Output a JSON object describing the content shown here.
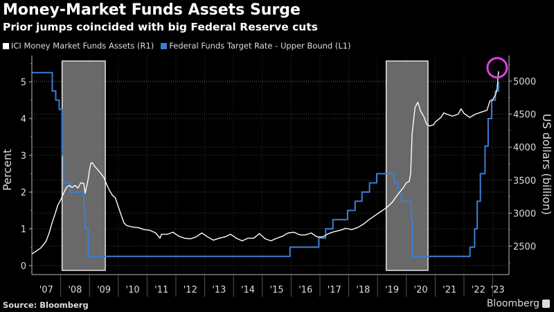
{
  "header": {
    "title": "Money-Market Funds Assets Surge",
    "subtitle": "Prior jumps coincided with big Federal Reserve cuts"
  },
  "footer": {
    "source": "Source: Bloomberg",
    "brand": "Bloomberg"
  },
  "chart_data": {
    "type": "line",
    "title": "Money-Market Funds Assets Surge",
    "subtitle": "Prior jumps coincided with big Federal Reserve cuts",
    "legend": [
      {
        "name": "ICI Money Market Funds Assets  (R1)",
        "color": "#ffffff"
      },
      {
        "name": "Federal Funds Target Rate - Upper Bound  (L1)",
        "color": "#3a7fd6"
      }
    ],
    "legend_position": "top-left",
    "xlabel": "",
    "x_ticks": [
      "'07",
      "'08",
      "'09",
      "'10",
      "'11",
      "'12",
      "'13",
      "'14",
      "'15",
      "'16",
      "'17",
      "'18",
      "'19",
      "'20",
      "'21",
      "'22",
      "'23"
    ],
    "x_range": [
      2007.0,
      2023.3
    ],
    "left_axis": {
      "label": "Percent",
      "ticks": [
        0,
        1,
        2,
        3,
        4,
        5
      ],
      "range": [
        -0.05,
        5.6
      ]
    },
    "right_axis": {
      "label": "US dollars (billion)",
      "ticks": [
        2500,
        3000,
        3500,
        4000,
        4500,
        5000
      ],
      "range": [
        2150,
        5320
      ]
    },
    "grid": true,
    "shaded_periods": [
      {
        "start": 2008.05,
        "end": 2009.55
      },
      {
        "start": 2019.3,
        "end": 2020.75
      }
    ],
    "highlight_circle": {
      "x": 2023.2,
      "value": 5150,
      "axis": "right",
      "color": "#e040e0"
    },
    "series": [
      {
        "name": "Federal Funds Target Rate - Upper Bound",
        "axis": "left",
        "step": true,
        "color": "#3a7fd6",
        "points": [
          [
            2007.0,
            5.25
          ],
          [
            2007.71,
            5.25
          ],
          [
            2007.71,
            4.75
          ],
          [
            2007.83,
            4.75
          ],
          [
            2007.83,
            4.5
          ],
          [
            2007.95,
            4.5
          ],
          [
            2007.95,
            4.25
          ],
          [
            2008.05,
            4.25
          ],
          [
            2008.05,
            3.0
          ],
          [
            2008.1,
            3.0
          ],
          [
            2008.1,
            2.25
          ],
          [
            2008.33,
            2.25
          ],
          [
            2008.33,
            2.0
          ],
          [
            2008.8,
            2.0
          ],
          [
            2008.8,
            1.5
          ],
          [
            2008.85,
            1.5
          ],
          [
            2008.85,
            1.0
          ],
          [
            2008.96,
            1.0
          ],
          [
            2008.96,
            0.25
          ],
          [
            2015.96,
            0.25
          ],
          [
            2015.96,
            0.5
          ],
          [
            2016.96,
            0.5
          ],
          [
            2016.96,
            0.75
          ],
          [
            2017.2,
            0.75
          ],
          [
            2017.2,
            1.0
          ],
          [
            2017.45,
            1.0
          ],
          [
            2017.45,
            1.25
          ],
          [
            2017.96,
            1.25
          ],
          [
            2017.96,
            1.5
          ],
          [
            2018.22,
            1.5
          ],
          [
            2018.22,
            1.75
          ],
          [
            2018.46,
            1.75
          ],
          [
            2018.46,
            2.0
          ],
          [
            2018.72,
            2.0
          ],
          [
            2018.72,
            2.25
          ],
          [
            2018.97,
            2.25
          ],
          [
            2018.97,
            2.5
          ],
          [
            2019.58,
            2.5
          ],
          [
            2019.58,
            2.25
          ],
          [
            2019.71,
            2.25
          ],
          [
            2019.71,
            2.0
          ],
          [
            2019.83,
            2.0
          ],
          [
            2019.83,
            1.75
          ],
          [
            2020.17,
            1.75
          ],
          [
            2020.17,
            1.25
          ],
          [
            2020.21,
            1.25
          ],
          [
            2020.21,
            0.25
          ],
          [
            2022.21,
            0.25
          ],
          [
            2022.21,
            0.5
          ],
          [
            2022.37,
            0.5
          ],
          [
            2022.37,
            1.0
          ],
          [
            2022.46,
            1.0
          ],
          [
            2022.46,
            1.75
          ],
          [
            2022.57,
            1.75
          ],
          [
            2022.57,
            2.5
          ],
          [
            2022.73,
            2.5
          ],
          [
            2022.73,
            3.25
          ],
          [
            2022.84,
            3.25
          ],
          [
            2022.84,
            4.0
          ],
          [
            2022.96,
            4.0
          ],
          [
            2022.96,
            4.5
          ],
          [
            2023.09,
            4.5
          ],
          [
            2023.09,
            4.75
          ],
          [
            2023.2,
            4.75
          ],
          [
            2023.2,
            5.0
          ]
        ]
      },
      {
        "name": "ICI Money Market Funds Assets",
        "axis": "right",
        "step": false,
        "color": "#ffffff",
        "points": [
          [
            2007.0,
            2380
          ],
          [
            2007.1,
            2410
          ],
          [
            2007.2,
            2440
          ],
          [
            2007.3,
            2470
          ],
          [
            2007.4,
            2520
          ],
          [
            2007.5,
            2580
          ],
          [
            2007.6,
            2700
          ],
          [
            2007.7,
            2850
          ],
          [
            2007.8,
            2980
          ],
          [
            2007.9,
            3120
          ],
          [
            2008.0,
            3200
          ],
          [
            2008.1,
            3300
          ],
          [
            2008.2,
            3390
          ],
          [
            2008.3,
            3420
          ],
          [
            2008.4,
            3390
          ],
          [
            2008.5,
            3420
          ],
          [
            2008.6,
            3380
          ],
          [
            2008.7,
            3460
          ],
          [
            2008.8,
            3450
          ],
          [
            2008.85,
            3300
          ],
          [
            2008.95,
            3500
          ],
          [
            2009.0,
            3650
          ],
          [
            2009.05,
            3760
          ],
          [
            2009.1,
            3760
          ],
          [
            2009.2,
            3700
          ],
          [
            2009.3,
            3650
          ],
          [
            2009.4,
            3600
          ],
          [
            2009.5,
            3540
          ],
          [
            2009.6,
            3430
          ],
          [
            2009.7,
            3340
          ],
          [
            2009.8,
            3270
          ],
          [
            2009.9,
            3230
          ],
          [
            2010.0,
            3100
          ],
          [
            2010.1,
            2970
          ],
          [
            2010.2,
            2850
          ],
          [
            2010.3,
            2810
          ],
          [
            2010.5,
            2790
          ],
          [
            2010.7,
            2780
          ],
          [
            2010.9,
            2750
          ],
          [
            2011.1,
            2740
          ],
          [
            2011.3,
            2700
          ],
          [
            2011.45,
            2620
          ],
          [
            2011.5,
            2680
          ],
          [
            2011.7,
            2680
          ],
          [
            2011.9,
            2710
          ],
          [
            2012.1,
            2650
          ],
          [
            2012.3,
            2620
          ],
          [
            2012.5,
            2610
          ],
          [
            2012.7,
            2640
          ],
          [
            2012.9,
            2700
          ],
          [
            2013.1,
            2640
          ],
          [
            2013.3,
            2590
          ],
          [
            2013.5,
            2620
          ],
          [
            2013.7,
            2640
          ],
          [
            2013.9,
            2680
          ],
          [
            2014.1,
            2620
          ],
          [
            2014.3,
            2580
          ],
          [
            2014.5,
            2620
          ],
          [
            2014.7,
            2620
          ],
          [
            2014.9,
            2690
          ],
          [
            2015.1,
            2610
          ],
          [
            2015.3,
            2580
          ],
          [
            2015.5,
            2620
          ],
          [
            2015.7,
            2650
          ],
          [
            2015.9,
            2700
          ],
          [
            2016.1,
            2710
          ],
          [
            2016.3,
            2670
          ],
          [
            2016.5,
            2670
          ],
          [
            2016.7,
            2700
          ],
          [
            2016.9,
            2640
          ],
          [
            2017.1,
            2640
          ],
          [
            2017.3,
            2690
          ],
          [
            2017.5,
            2720
          ],
          [
            2017.7,
            2740
          ],
          [
            2017.9,
            2770
          ],
          [
            2018.1,
            2750
          ],
          [
            2018.3,
            2780
          ],
          [
            2018.5,
            2830
          ],
          [
            2018.7,
            2900
          ],
          [
            2018.9,
            2960
          ],
          [
            2019.1,
            3020
          ],
          [
            2019.3,
            3080
          ],
          [
            2019.5,
            3160
          ],
          [
            2019.7,
            3280
          ],
          [
            2019.9,
            3390
          ],
          [
            2020.0,
            3460
          ],
          [
            2020.1,
            3480
          ],
          [
            2020.15,
            3600
          ],
          [
            2020.2,
            4200
          ],
          [
            2020.3,
            4600
          ],
          [
            2020.4,
            4680
          ],
          [
            2020.5,
            4540
          ],
          [
            2020.6,
            4470
          ],
          [
            2020.7,
            4350
          ],
          [
            2020.8,
            4320
          ],
          [
            2020.95,
            4340
          ],
          [
            2021.0,
            4380
          ],
          [
            2021.2,
            4450
          ],
          [
            2021.3,
            4520
          ],
          [
            2021.4,
            4500
          ],
          [
            2021.6,
            4470
          ],
          [
            2021.8,
            4500
          ],
          [
            2021.9,
            4580
          ],
          [
            2022.0,
            4510
          ],
          [
            2022.1,
            4480
          ],
          [
            2022.2,
            4450
          ],
          [
            2022.4,
            4500
          ],
          [
            2022.6,
            4530
          ],
          [
            2022.8,
            4560
          ],
          [
            2022.9,
            4700
          ],
          [
            2023.0,
            4720
          ],
          [
            2023.1,
            4800
          ],
          [
            2023.15,
            4880
          ],
          [
            2023.2,
            5150
          ]
        ]
      }
    ]
  }
}
